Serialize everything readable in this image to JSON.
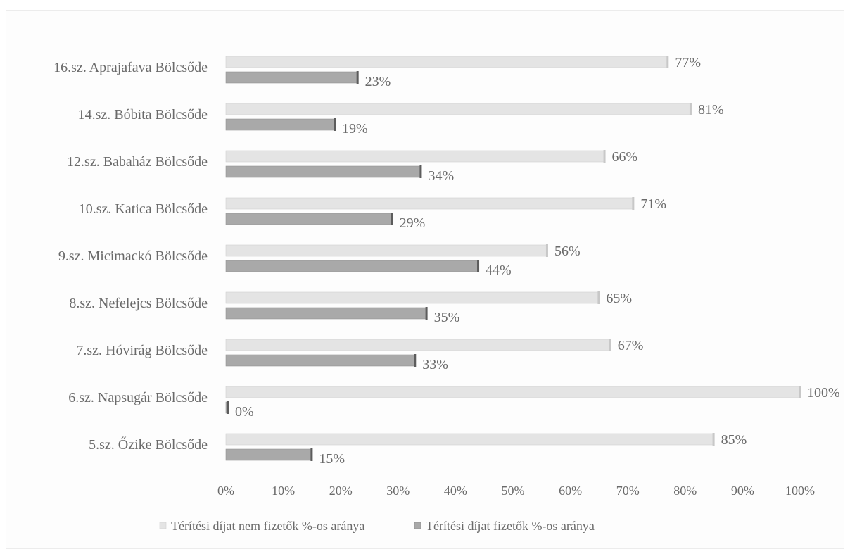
{
  "chart_data": {
    "type": "bar",
    "orientation": "horizontal",
    "categories": [
      "16.sz. Aprajafava Bölcsőde",
      "14.sz. Bóbita Bölcsőde",
      "12.sz. Babaház Bölcsőde",
      "10.sz. Katica Bölcsőde",
      "9.sz. Micimackó Bölcsőde",
      "8.sz. Nefelejcs Bölcsőde",
      "7.sz. Hóvirág Bölcsőde",
      "6.sz. Napsugár Bölcsőde",
      "5.sz. Őzike Bölcsőde"
    ],
    "series": [
      {
        "name": "Térítési díjat nem fizetők %-os aránya",
        "color": "#e4e4e4",
        "values": [
          77,
          81,
          66,
          71,
          56,
          65,
          67,
          100,
          85
        ],
        "labels": [
          "77%",
          "81%",
          "66%",
          "71%",
          "56%",
          "65%",
          "67%",
          "100%",
          "85%"
        ]
      },
      {
        "name": "Térítési díjat fizetők %-os aránya",
        "color": "#a9a9a9",
        "values": [
          23,
          19,
          34,
          29,
          44,
          35,
          33,
          0,
          15
        ],
        "labels": [
          "23%",
          "19%",
          "34%",
          "29%",
          "44%",
          "35%",
          "33%",
          "0%",
          "15%"
        ]
      }
    ],
    "xlim": [
      0,
      100
    ],
    "xticks": [
      0,
      10,
      20,
      30,
      40,
      50,
      60,
      70,
      80,
      90,
      100
    ],
    "xtick_labels": [
      "0%",
      "10%",
      "20%",
      "30%",
      "40%",
      "50%",
      "60%",
      "70%",
      "80%",
      "90%",
      "100%"
    ],
    "legend_position": "bottom",
    "grid": false,
    "title": "",
    "xlabel": "",
    "ylabel": ""
  }
}
